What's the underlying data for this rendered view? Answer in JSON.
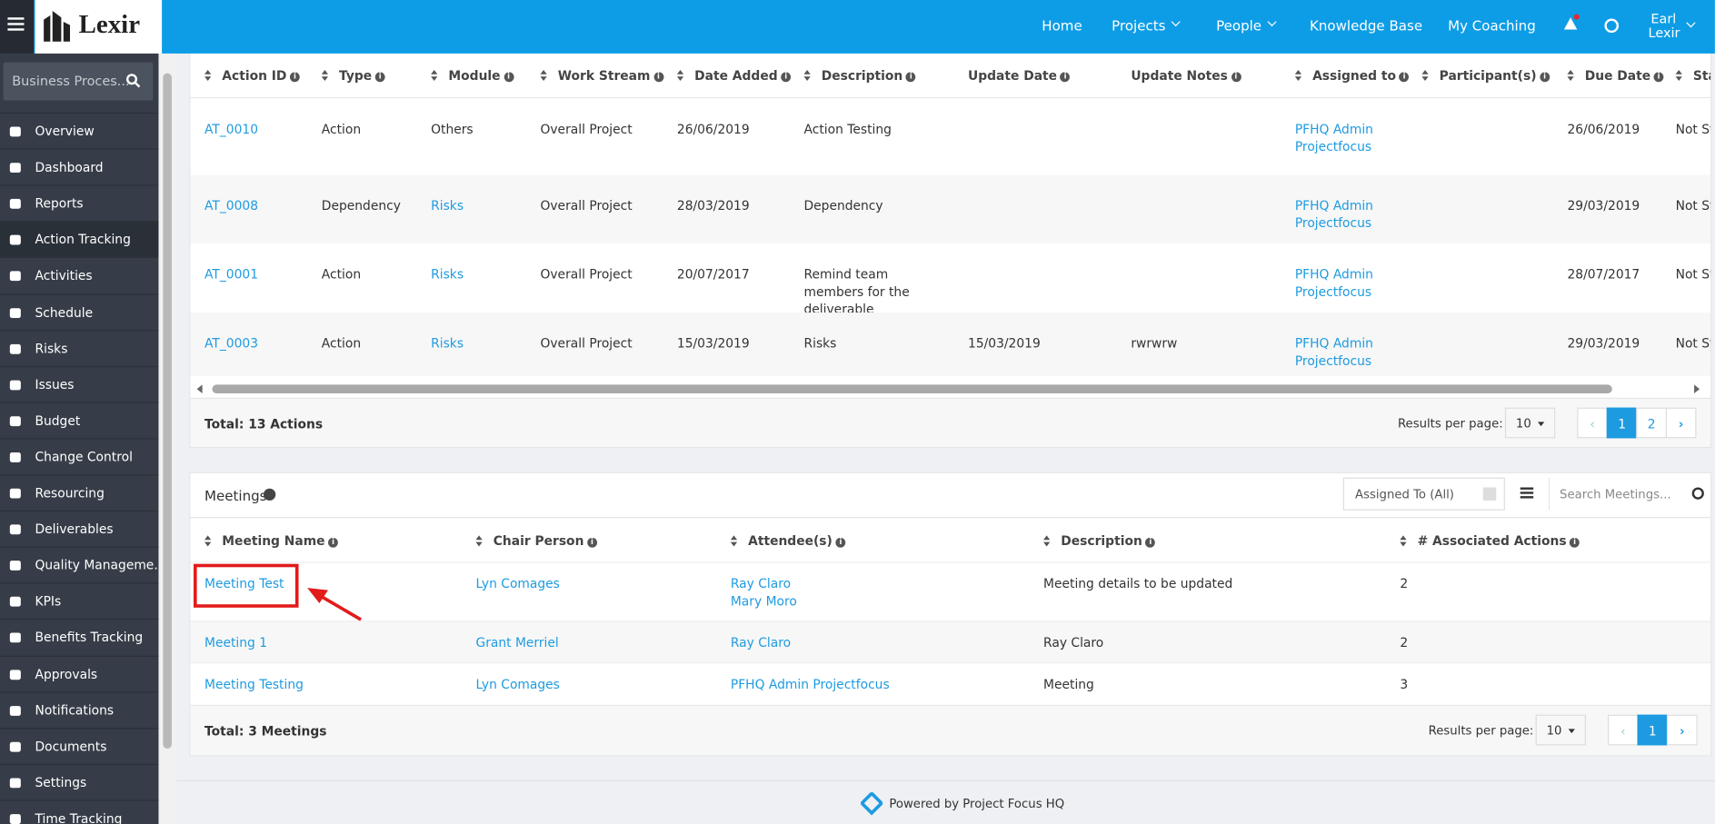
{
  "header": {
    "logo": "Lexir",
    "nav": [
      "Home",
      "Projects",
      "People",
      "Knowledge Base",
      "My Coaching"
    ],
    "user": [
      "Earl",
      "Lexir"
    ]
  },
  "sidebar": {
    "search": "Business Proces...",
    "active": 3,
    "items": [
      "Overview",
      "Dashboard",
      "Reports",
      "Action Tracking",
      "Activities",
      "Schedule",
      "Risks",
      "Issues",
      "Budget",
      "Change Control",
      "Resourcing",
      "Deliverables",
      "Quality Manageme...",
      "KPIs",
      "Benefits Tracking",
      "Approvals",
      "Notifications",
      "Documents",
      "Settings",
      "Time Tracking"
    ]
  },
  "actions": {
    "columns": [
      "Action ID",
      "Type",
      "Module",
      "Work Stream",
      "Date Added",
      "Description",
      "Update Date",
      "Update Notes",
      "Assigned to",
      "Participant(s)",
      "Due Date",
      "Sta"
    ],
    "rows": [
      [
        {
          "link": "AT_0010"
        },
        "Action",
        "Others",
        "Overall Project",
        "26/06/2019",
        "Action Testing",
        null,
        null,
        {
          "link": "PFHQ Admin Projectfocus"
        },
        null,
        "26/06/2019",
        "Not St"
      ],
      [
        {
          "link": "AT_0008"
        },
        "Dependency",
        {
          "link": "Risks"
        },
        "Overall Project",
        "28/03/2019",
        "Dependency",
        null,
        null,
        {
          "link": "PFHQ Admin Projectfocus"
        },
        null,
        "29/03/2019",
        "Not St"
      ],
      [
        {
          "link": "AT_0001"
        },
        "Action",
        {
          "link": "Risks"
        },
        "Overall Project",
        "20/07/2017",
        "Remind team members for the deliverable",
        null,
        null,
        {
          "link": "PFHQ Admin Projectfocus"
        },
        null,
        "28/07/2017",
        "Not St"
      ],
      [
        {
          "link": "AT_0003"
        },
        "Action",
        {
          "link": "Risks"
        },
        "Overall Project",
        "15/03/2019",
        "Risks",
        "15/03/2019",
        "rwrwrw",
        {
          "link": "PFHQ Admin Projectfocus"
        },
        null,
        "29/03/2019",
        "Not St"
      ]
    ],
    "total": "Total: 13 Actions",
    "results_label": "Results per page:",
    "per_page": 10,
    "pages": [
      1,
      2
    ]
  },
  "meetings": {
    "title": "Meetings",
    "filter": "Assigned To (All)",
    "search": "Search Meetings...",
    "columns": [
      "Meeting Name",
      "Chair Person",
      "Attendee(s)",
      "Description",
      "# Associated Actions"
    ],
    "rows": [
      [
        {
          "link": "Meeting Test"
        },
        {
          "link": "Lyn Comages"
        },
        {
          "link": [
            "Ray Claro",
            "Mary Moro"
          ]
        },
        "Meeting details to be updated",
        2
      ],
      [
        {
          "link": "Meeting 1"
        },
        {
          "link": "Grant Merriel"
        },
        {
          "link": [
            "Ray Claro"
          ]
        },
        "Ray Claro",
        2
      ],
      [
        {
          "link": "Meeting Testing"
        },
        {
          "link": "Lyn Comages"
        },
        {
          "link": [
            "PFHQ Admin Projectfocus"
          ]
        },
        "Meeting",
        3
      ]
    ],
    "total": "Total: 3 Meetings",
    "results_label": "Results per page:",
    "per_page": 10,
    "pages": [
      1
    ]
  },
  "footer": "Powered by Project Focus HQ"
}
